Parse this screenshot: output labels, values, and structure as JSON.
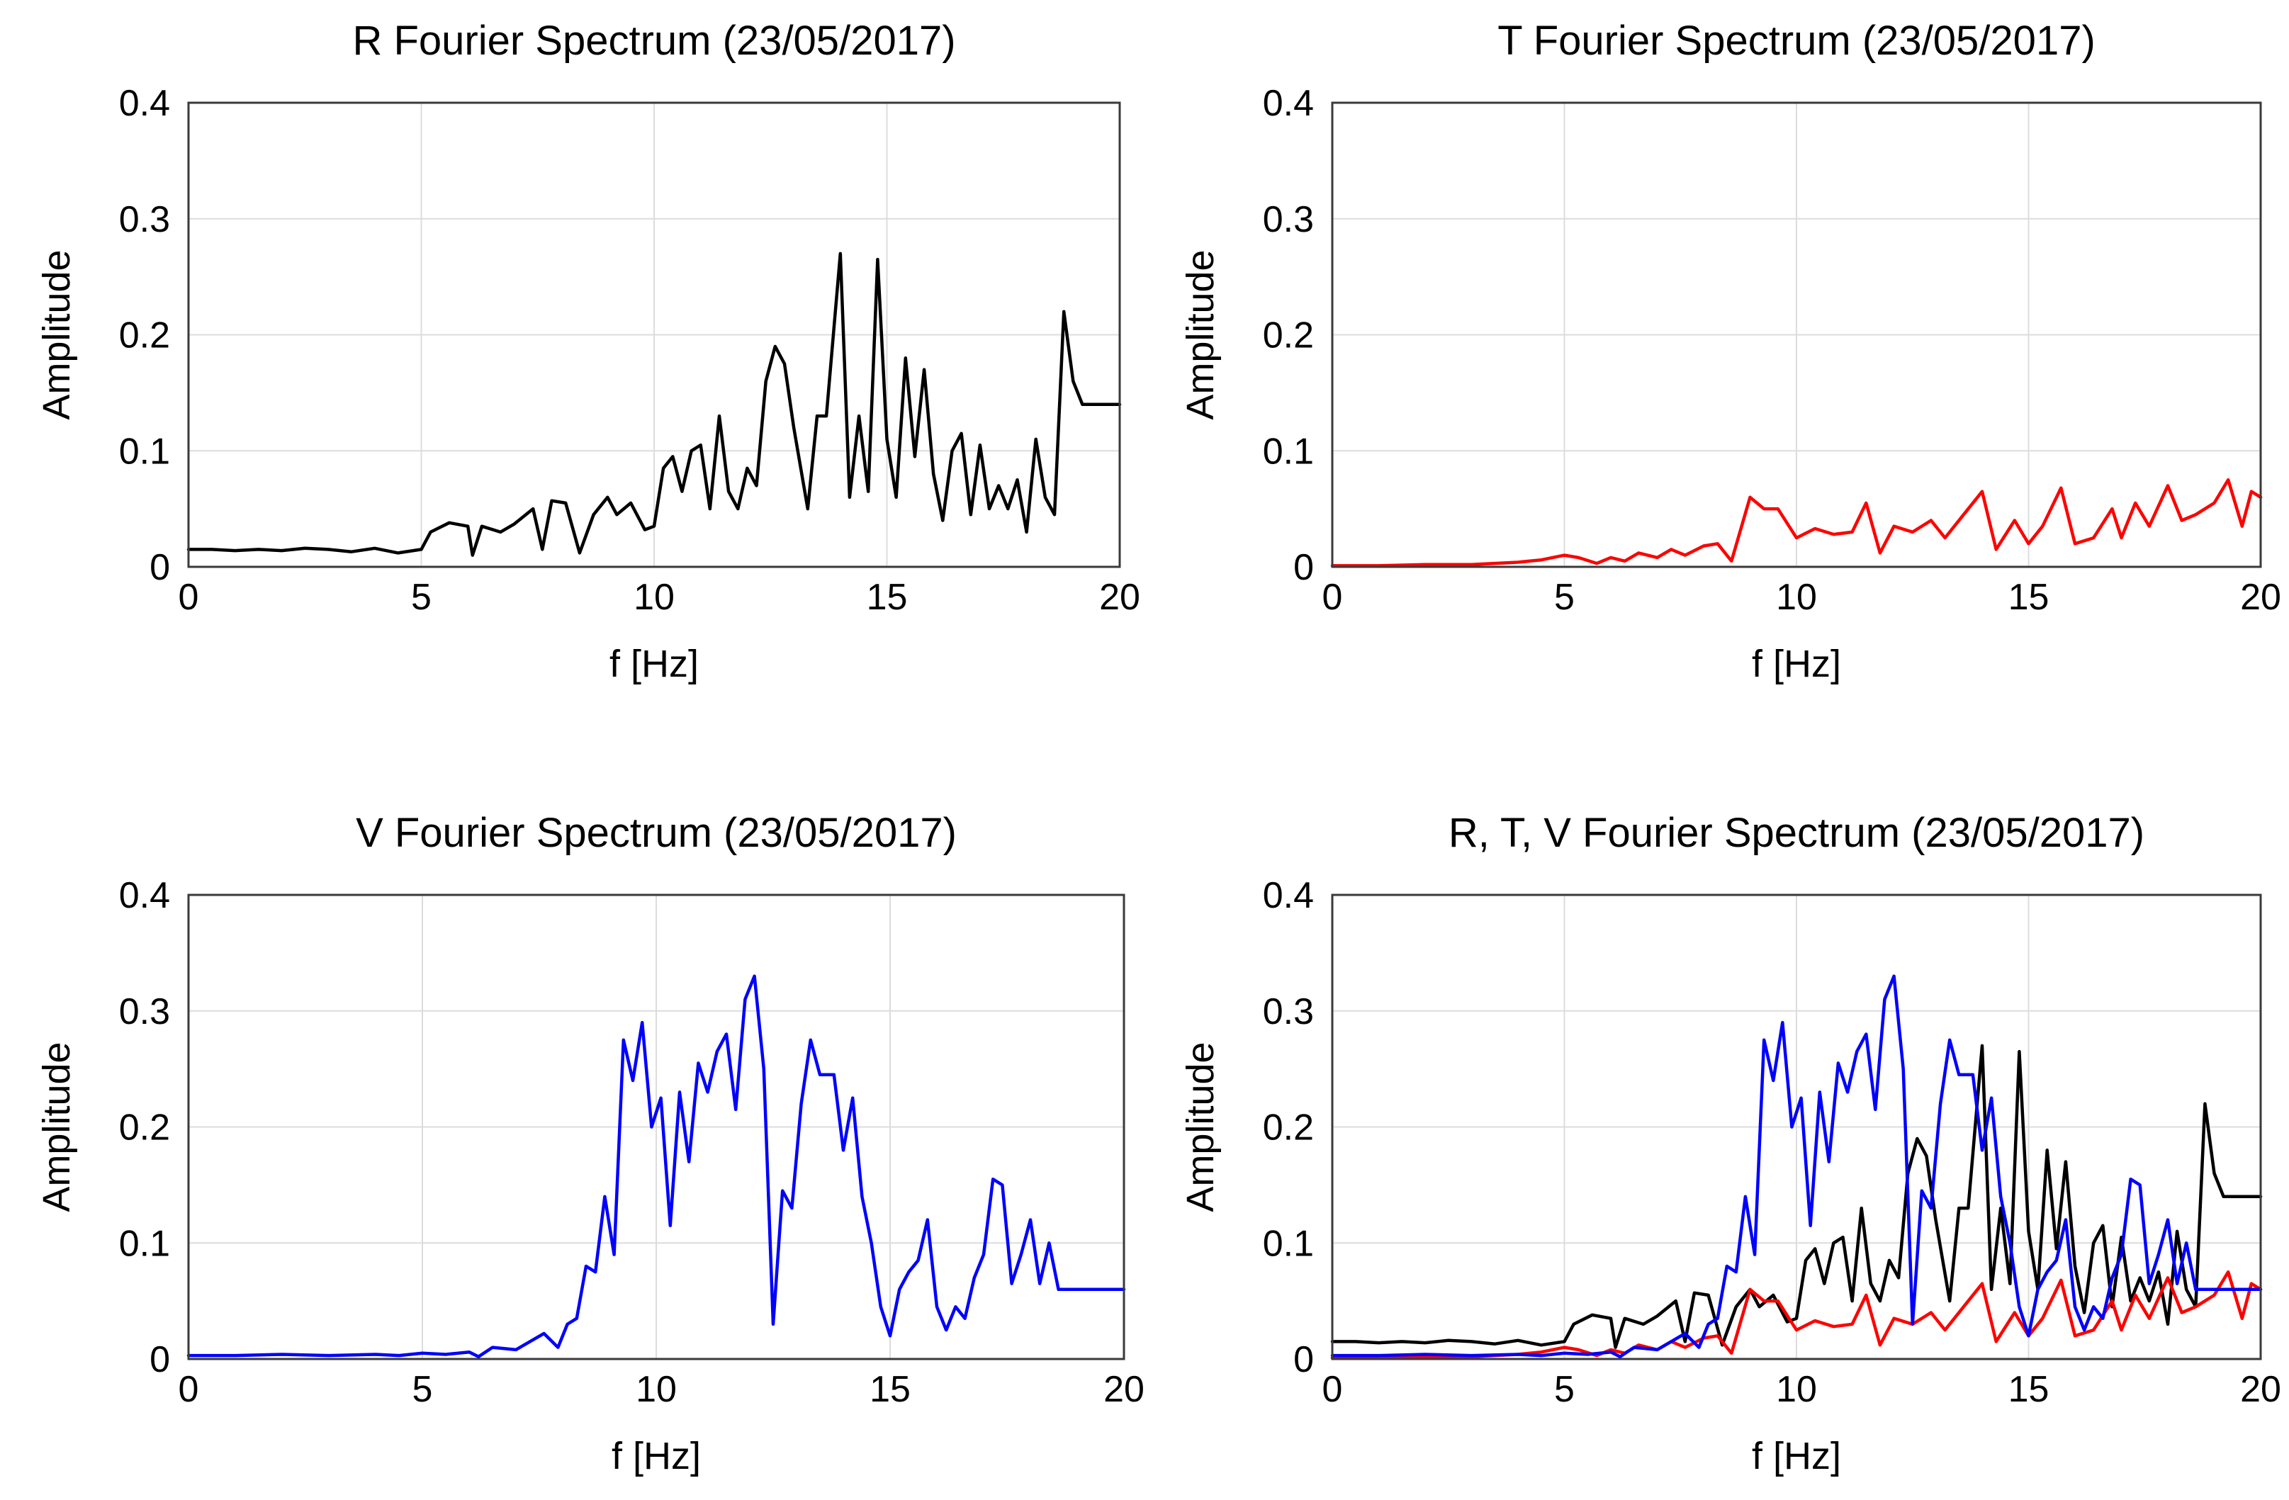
{
  "chart_data": [
    {
      "type": "line",
      "title": "R Fourier Spectrum (23/05/2017)",
      "xlabel": "f [Hz]",
      "ylabel": "Amplitude",
      "xlim": [
        0,
        20
      ],
      "ylim": [
        0,
        0.4
      ],
      "xticks": [
        "0",
        "5",
        "10",
        "15",
        "20"
      ],
      "yticks": [
        "0",
        "0.1",
        "0.2",
        "0.3",
        "0.4"
      ],
      "grid": true,
      "series": [
        {
          "name": "R",
          "color": "#000000",
          "x": [
            0,
            0.5,
            1,
            1.5,
            2,
            2.5,
            3,
            3.5,
            4,
            4.5,
            5,
            5.2,
            5.6,
            6,
            6.1,
            6.3,
            6.7,
            7,
            7.4,
            7.6,
            7.8,
            8.1,
            8.4,
            8.7,
            9,
            9.2,
            9.5,
            9.8,
            10,
            10.2,
            10.4,
            10.6,
            10.8,
            11,
            11.2,
            11.4,
            11.6,
            11.8,
            12,
            12.2,
            12.4,
            12.6,
            12.8,
            13,
            13.3,
            13.5,
            13.7,
            14,
            14.2,
            14.4,
            14.6,
            14.8,
            15,
            15.2,
            15.4,
            15.6,
            15.8,
            16,
            16.2,
            16.4,
            16.6,
            16.8,
            17,
            17.2,
            17.4,
            17.6,
            17.8,
            18,
            18.2,
            18.4,
            18.6,
            18.8,
            19,
            19.2,
            19.4,
            19.6,
            19.8,
            20
          ],
          "y": [
            0.015,
            0.015,
            0.014,
            0.015,
            0.014,
            0.016,
            0.015,
            0.013,
            0.016,
            0.012,
            0.015,
            0.03,
            0.038,
            0.035,
            0.01,
            0.035,
            0.03,
            0.037,
            0.05,
            0.015,
            0.057,
            0.055,
            0.012,
            0.045,
            0.06,
            0.045,
            0.055,
            0.032,
            0.035,
            0.085,
            0.095,
            0.065,
            0.1,
            0.105,
            0.05,
            0.13,
            0.065,
            0.05,
            0.085,
            0.07,
            0.16,
            0.19,
            0.175,
            0.12,
            0.05,
            0.13,
            0.13,
            0.27,
            0.06,
            0.13,
            0.065,
            0.265,
            0.11,
            0.06,
            0.18,
            0.095,
            0.17,
            0.08,
            0.04,
            0.1,
            0.115,
            0.045,
            0.105,
            0.05,
            0.07,
            0.05,
            0.075,
            0.03,
            0.11,
            0.06,
            0.045,
            0.22,
            0.16,
            0.14,
            0.14,
            0.14,
            0.14,
            0.14
          ]
        }
      ]
    },
    {
      "type": "line",
      "title": "T Fourier Spectrum (23/05/2017)",
      "xlabel": "f [Hz]",
      "ylabel": "Amplitude",
      "xlim": [
        0,
        20
      ],
      "ylim": [
        0,
        0.4
      ],
      "xticks": [
        "0",
        "5",
        "10",
        "15",
        "20"
      ],
      "yticks": [
        "0",
        "0.1",
        "0.2",
        "0.3",
        "0.4"
      ],
      "grid": true,
      "series": [
        {
          "name": "T",
          "color": "#ff0000",
          "x": [
            0,
            1,
            2,
            3,
            4,
            4.5,
            5,
            5.3,
            5.7,
            6,
            6.3,
            6.6,
            7,
            7.3,
            7.6,
            8,
            8.3,
            8.6,
            9,
            9.3,
            9.6,
            10,
            10.4,
            10.8,
            11.2,
            11.5,
            11.8,
            12.1,
            12.5,
            12.9,
            13.2,
            13.6,
            14,
            14.3,
            14.7,
            15,
            15.3,
            15.7,
            16,
            16.4,
            16.8,
            17,
            17.3,
            17.6,
            18,
            18.3,
            18.6,
            19,
            19.3,
            19.6,
            19.8,
            20
          ],
          "y": [
            0.001,
            0.001,
            0.002,
            0.002,
            0.004,
            0.006,
            0.01,
            0.008,
            0.003,
            0.008,
            0.005,
            0.012,
            0.008,
            0.015,
            0.01,
            0.018,
            0.02,
            0.005,
            0.06,
            0.05,
            0.05,
            0.025,
            0.033,
            0.028,
            0.03,
            0.055,
            0.012,
            0.035,
            0.03,
            0.04,
            0.025,
            0.045,
            0.065,
            0.015,
            0.04,
            0.02,
            0.035,
            0.068,
            0.02,
            0.025,
            0.05,
            0.025,
            0.055,
            0.035,
            0.07,
            0.04,
            0.045,
            0.055,
            0.075,
            0.035,
            0.065,
            0.06
          ]
        }
      ]
    },
    {
      "type": "line",
      "title": "V Fourier Spectrum (23/05/2017)",
      "xlabel": "f [Hz]",
      "ylabel": "Amplitude",
      "xlim": [
        0,
        20
      ],
      "ylim": [
        0,
        0.4
      ],
      "xticks": [
        "0",
        "5",
        "10",
        "15",
        "20"
      ],
      "yticks": [
        "0",
        "0.1",
        "0.2",
        "0.3",
        "0.4"
      ],
      "grid": true,
      "series": [
        {
          "name": "V",
          "color": "#0000ff",
          "x": [
            0,
            1,
            2,
            3,
            4,
            4.5,
            5,
            5.5,
            6,
            6.2,
            6.5,
            7,
            7.3,
            7.6,
            7.9,
            8.1,
            8.3,
            8.5,
            8.7,
            8.9,
            9.1,
            9.3,
            9.5,
            9.7,
            9.9,
            10.1,
            10.3,
            10.5,
            10.7,
            10.9,
            11.1,
            11.3,
            11.5,
            11.7,
            11.9,
            12.1,
            12.3,
            12.5,
            12.7,
            12.9,
            13.1,
            13.3,
            13.5,
            13.8,
            14,
            14.2,
            14.4,
            14.6,
            14.8,
            15,
            15.2,
            15.4,
            15.6,
            15.8,
            16,
            16.2,
            16.4,
            16.6,
            16.8,
            17,
            17.2,
            17.4,
            17.6,
            17.8,
            18,
            18.2,
            18.4,
            18.6,
            18.8,
            19,
            19.2,
            19.4,
            19.6,
            19.8,
            20
          ],
          "y": [
            0.003,
            0.003,
            0.004,
            0.003,
            0.004,
            0.003,
            0.005,
            0.004,
            0.006,
            0.002,
            0.01,
            0.008,
            0.015,
            0.022,
            0.01,
            0.03,
            0.035,
            0.08,
            0.075,
            0.14,
            0.09,
            0.275,
            0.24,
            0.29,
            0.2,
            0.225,
            0.115,
            0.23,
            0.17,
            0.255,
            0.23,
            0.265,
            0.28,
            0.215,
            0.31,
            0.33,
            0.25,
            0.03,
            0.145,
            0.13,
            0.22,
            0.275,
            0.245,
            0.245,
            0.18,
            0.225,
            0.14,
            0.1,
            0.045,
            0.02,
            0.06,
            0.075,
            0.085,
            0.12,
            0.045,
            0.025,
            0.045,
            0.035,
            0.07,
            0.09,
            0.155,
            0.15,
            0.065,
            0.09,
            0.12,
            0.065,
            0.1,
            0.06,
            0.06,
            0.06,
            0.06,
            0.06,
            0.06,
            0.06,
            0.06
          ]
        }
      ]
    },
    {
      "type": "line",
      "title": "R, T, V Fourier Spectrum (23/05/2017)",
      "xlabel": "f [Hz]",
      "ylabel": "Amplitude",
      "xlim": [
        0,
        20
      ],
      "ylim": [
        0,
        0.4
      ],
      "xticks": [
        "0",
        "5",
        "10",
        "15",
        "20"
      ],
      "yticks": [
        "0",
        "0.1",
        "0.2",
        "0.3",
        "0.4"
      ],
      "grid": true,
      "series": [
        {
          "name": "R",
          "color": "#000000",
          "x": [
            0,
            0.5,
            1,
            1.5,
            2,
            2.5,
            3,
            3.5,
            4,
            4.5,
            5,
            5.2,
            5.6,
            6,
            6.1,
            6.3,
            6.7,
            7,
            7.4,
            7.6,
            7.8,
            8.1,
            8.4,
            8.7,
            9,
            9.2,
            9.5,
            9.8,
            10,
            10.2,
            10.4,
            10.6,
            10.8,
            11,
            11.2,
            11.4,
            11.6,
            11.8,
            12,
            12.2,
            12.4,
            12.6,
            12.8,
            13,
            13.3,
            13.5,
            13.7,
            14,
            14.2,
            14.4,
            14.6,
            14.8,
            15,
            15.2,
            15.4,
            15.6,
            15.8,
            16,
            16.2,
            16.4,
            16.6,
            16.8,
            17,
            17.2,
            17.4,
            17.6,
            17.8,
            18,
            18.2,
            18.4,
            18.6,
            18.8,
            19,
            19.2,
            19.4,
            19.6,
            19.8,
            20
          ],
          "y": [
            0.015,
            0.015,
            0.014,
            0.015,
            0.014,
            0.016,
            0.015,
            0.013,
            0.016,
            0.012,
            0.015,
            0.03,
            0.038,
            0.035,
            0.01,
            0.035,
            0.03,
            0.037,
            0.05,
            0.015,
            0.057,
            0.055,
            0.012,
            0.045,
            0.06,
            0.045,
            0.055,
            0.032,
            0.035,
            0.085,
            0.095,
            0.065,
            0.1,
            0.105,
            0.05,
            0.13,
            0.065,
            0.05,
            0.085,
            0.07,
            0.16,
            0.19,
            0.175,
            0.12,
            0.05,
            0.13,
            0.13,
            0.27,
            0.06,
            0.13,
            0.065,
            0.265,
            0.11,
            0.06,
            0.18,
            0.095,
            0.17,
            0.08,
            0.04,
            0.1,
            0.115,
            0.045,
            0.105,
            0.05,
            0.07,
            0.05,
            0.075,
            0.03,
            0.11,
            0.06,
            0.045,
            0.22,
            0.16,
            0.14,
            0.14,
            0.14,
            0.14,
            0.14
          ]
        },
        {
          "name": "T",
          "color": "#ff0000",
          "x": [
            0,
            1,
            2,
            3,
            4,
            4.5,
            5,
            5.3,
            5.7,
            6,
            6.3,
            6.6,
            7,
            7.3,
            7.6,
            8,
            8.3,
            8.6,
            9,
            9.3,
            9.6,
            10,
            10.4,
            10.8,
            11.2,
            11.5,
            11.8,
            12.1,
            12.5,
            12.9,
            13.2,
            13.6,
            14,
            14.3,
            14.7,
            15,
            15.3,
            15.7,
            16,
            16.4,
            16.8,
            17,
            17.3,
            17.6,
            18,
            18.3,
            18.6,
            19,
            19.3,
            19.6,
            19.8,
            20
          ],
          "y": [
            0.001,
            0.001,
            0.002,
            0.002,
            0.004,
            0.006,
            0.01,
            0.008,
            0.003,
            0.008,
            0.005,
            0.012,
            0.008,
            0.015,
            0.01,
            0.018,
            0.02,
            0.005,
            0.06,
            0.05,
            0.05,
            0.025,
            0.033,
            0.028,
            0.03,
            0.055,
            0.012,
            0.035,
            0.03,
            0.04,
            0.025,
            0.045,
            0.065,
            0.015,
            0.04,
            0.02,
            0.035,
            0.068,
            0.02,
            0.025,
            0.05,
            0.025,
            0.055,
            0.035,
            0.07,
            0.04,
            0.045,
            0.055,
            0.075,
            0.035,
            0.065,
            0.06
          ]
        },
        {
          "name": "V",
          "color": "#0000ff",
          "x": [
            0,
            1,
            2,
            3,
            4,
            4.5,
            5,
            5.5,
            6,
            6.2,
            6.5,
            7,
            7.3,
            7.6,
            7.9,
            8.1,
            8.3,
            8.5,
            8.7,
            8.9,
            9.1,
            9.3,
            9.5,
            9.7,
            9.9,
            10.1,
            10.3,
            10.5,
            10.7,
            10.9,
            11.1,
            11.3,
            11.5,
            11.7,
            11.9,
            12.1,
            12.3,
            12.5,
            12.7,
            12.9,
            13.1,
            13.3,
            13.5,
            13.8,
            14,
            14.2,
            14.4,
            14.6,
            14.8,
            15,
            15.2,
            15.4,
            15.6,
            15.8,
            16,
            16.2,
            16.4,
            16.6,
            16.8,
            17,
            17.2,
            17.4,
            17.6,
            17.8,
            18,
            18.2,
            18.4,
            18.6,
            18.8,
            19,
            19.2,
            19.4,
            19.6,
            19.8,
            20
          ],
          "y": [
            0.003,
            0.003,
            0.004,
            0.003,
            0.004,
            0.003,
            0.005,
            0.004,
            0.006,
            0.002,
            0.01,
            0.008,
            0.015,
            0.022,
            0.01,
            0.03,
            0.035,
            0.08,
            0.075,
            0.14,
            0.09,
            0.275,
            0.24,
            0.29,
            0.2,
            0.225,
            0.115,
            0.23,
            0.17,
            0.255,
            0.23,
            0.265,
            0.28,
            0.215,
            0.31,
            0.33,
            0.25,
            0.03,
            0.145,
            0.13,
            0.22,
            0.275,
            0.245,
            0.245,
            0.18,
            0.225,
            0.14,
            0.1,
            0.045,
            0.02,
            0.06,
            0.075,
            0.085,
            0.12,
            0.045,
            0.025,
            0.045,
            0.035,
            0.07,
            0.09,
            0.155,
            0.15,
            0.065,
            0.09,
            0.12,
            0.065,
            0.1,
            0.06,
            0.06,
            0.06,
            0.06,
            0.06,
            0.06,
            0.06,
            0.06
          ]
        }
      ]
    }
  ]
}
